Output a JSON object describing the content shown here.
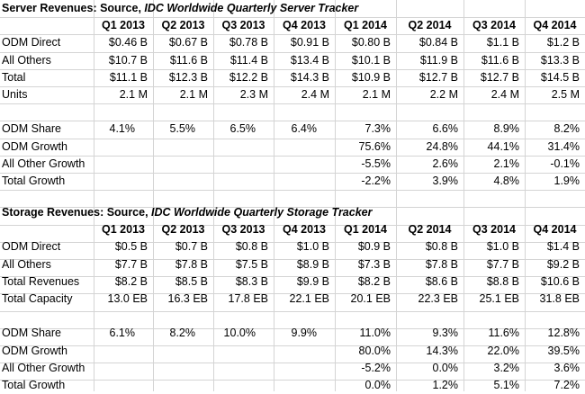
{
  "server": {
    "title_prefix": "Server Revenues: Source, ",
    "title_source": "IDC Worldwide Quarterly Server Tracker",
    "quarters": [
      "Q1 2013",
      "Q2 2013",
      "Q3 2013",
      "Q4 2013",
      "Q1 2014",
      "Q2 2014",
      "Q3 2014",
      "Q4 2014"
    ],
    "rows": [
      {
        "label": "ODM Direct",
        "values": [
          "$0.46 B",
          "$0.67 B",
          "$0.78 B",
          "$0.91 B",
          "$0.80 B",
          "$0.84 B",
          "$1.1 B",
          "$1.2 B"
        ]
      },
      {
        "label": "All Others",
        "values": [
          "$10.7 B",
          "$11.6 B",
          "$11.4 B",
          "$13.4 B",
          "$10.1 B",
          "$11.9 B",
          "$11.6 B",
          "$13.3 B"
        ]
      },
      {
        "label": "Total",
        "values": [
          "$11.1 B",
          "$12.3 B",
          "$12.2 B",
          "$14.3 B",
          "$10.9 B",
          "$12.7 B",
          "$12.7 B",
          "$14.5 B"
        ]
      },
      {
        "label": "Units",
        "values": [
          "2.1 M",
          "2.1 M",
          "2.3 M",
          "2.4 M",
          "2.1 M",
          "2.2 M",
          "2.4 M",
          "2.5 M"
        ]
      }
    ],
    "metrics": [
      {
        "label": "ODM Share",
        "values": [
          "4.1%",
          "5.5%",
          "6.5%",
          "6.4%",
          "7.3%",
          "6.6%",
          "8.9%",
          "8.2%"
        ]
      },
      {
        "label": "ODM Growth",
        "values": [
          "",
          "",
          "",
          "",
          "75.6%",
          "24.8%",
          "44.1%",
          "31.4%"
        ]
      },
      {
        "label": "All Other Growth",
        "values": [
          "",
          "",
          "",
          "",
          "-5.5%",
          "2.6%",
          "2.1%",
          "-0.1%"
        ]
      },
      {
        "label": "Total Growth",
        "values": [
          "",
          "",
          "",
          "",
          "-2.2%",
          "3.9%",
          "4.8%",
          "1.9%"
        ]
      }
    ]
  },
  "storage": {
    "title_prefix": "Storage Revenues: Source, ",
    "title_source": "IDC Worldwide Quarterly Storage Tracker",
    "quarters": [
      "Q1 2013",
      "Q2 2013",
      "Q3 2013",
      "Q4 2013",
      "Q1 2014",
      "Q2 2014",
      "Q3 2014",
      "Q4 2014"
    ],
    "rows": [
      {
        "label": "ODM Direct",
        "values": [
          "$0.5 B",
          "$0.7 B",
          "$0.8 B",
          "$1.0 B",
          "$0.9 B",
          "$0.8 B",
          "$1.0 B",
          "$1.4 B"
        ]
      },
      {
        "label": "All Others",
        "values": [
          "$7.7 B",
          "$7.8 B",
          "$7.5 B",
          "$8.9 B",
          "$7.3 B",
          "$7.8 B",
          "$7.7 B",
          "$9.2 B"
        ]
      },
      {
        "label": "Total Revenues",
        "values": [
          "$8.2 B",
          "$8.5 B",
          "$8.3 B",
          "$9.9 B",
          "$8.2 B",
          "$8.6 B",
          "$8.8 B",
          "$10.6 B"
        ]
      },
      {
        "label": "Total Capacity",
        "values": [
          "13.0 EB",
          "16.3 EB",
          "17.8 EB",
          "22.1 EB",
          "20.1 EB",
          "22.3 EB",
          "25.1 EB",
          "31.8 EB"
        ]
      }
    ],
    "metrics": [
      {
        "label": "ODM Share",
        "values": [
          "6.1%",
          "8.2%",
          "10.0%",
          "9.9%",
          "11.0%",
          "9.3%",
          "11.6%",
          "12.8%"
        ]
      },
      {
        "label": "ODM Growth",
        "values": [
          "",
          "",
          "",
          "",
          "80.0%",
          "14.3%",
          "22.0%",
          "39.5%"
        ]
      },
      {
        "label": "All Other Growth",
        "values": [
          "",
          "",
          "",
          "",
          "-5.2%",
          "0.0%",
          "3.2%",
          "3.6%"
        ]
      },
      {
        "label": "Total Growth",
        "values": [
          "",
          "",
          "",
          "",
          "0.0%",
          "1.2%",
          "5.1%",
          "7.2%"
        ]
      }
    ]
  }
}
